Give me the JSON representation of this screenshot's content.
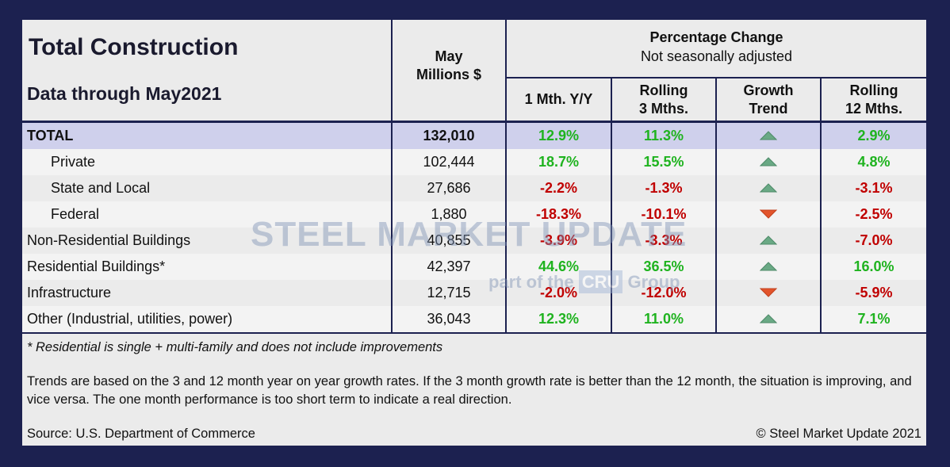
{
  "header": {
    "title": "Total Construction",
    "subtitle": "Data through May2021",
    "col_may": "May",
    "col_unit": "Millions $",
    "group": "Percentage Change",
    "group_sub": "Not seasonally adjusted",
    "col_m1_a": "1 Mth. Y/Y",
    "col_r3_a": "Rolling",
    "col_r3_b": "3 Mths.",
    "col_trend_a": "Growth",
    "col_trend_b": "Trend",
    "col_r12_a": "Rolling",
    "col_r12_b": "12 Mths."
  },
  "table": {
    "rows": [
      [
        "TOTAL",
        "132,010",
        "12.9%",
        "11.3%",
        "2.9%"
      ],
      [
        "Private",
        "102,444",
        "18.7%",
        "15.5%",
        "4.8%"
      ],
      [
        "State and Local",
        "27,686",
        "-2.2%",
        "-1.3%",
        "-3.1%"
      ],
      [
        "Federal",
        "1,880",
        "-18.3%",
        "-10.1%",
        "-2.5%"
      ],
      [
        "Non-Residential Buildings",
        "40,855",
        "-3.9%",
        "-3.3%",
        "-7.0%"
      ],
      [
        "Residential Buildings*",
        "42,397",
        "44.6%",
        "36.5%",
        "16.0%"
      ],
      [
        "Infrastructure",
        "12,715",
        "-2.0%",
        "-12.0%",
        "-5.9%"
      ],
      [
        "Other (Industrial, utilities, power)",
        "36,043",
        "12.3%",
        "11.0%",
        "7.1%"
      ]
    ]
  },
  "watermark": {
    "brand": "STEEL MARKET UPDATE",
    "tag_a": "part of the",
    "tag_logo": "CRU",
    "tag_b": "Group"
  },
  "notes": {
    "footnote": "* Residential is single + multi-family and does not include improvements",
    "trends": "Trends are based on the 3 and 12 month year on year growth rates. If the 3 month growth rate is better than the 12 month, the situation is improving, and vice versa. The one month performance is too short term to indicate a real direction.",
    "source": "Source: U.S. Department of Commerce",
    "copyright": "© Steel Market Update 2021"
  }
}
